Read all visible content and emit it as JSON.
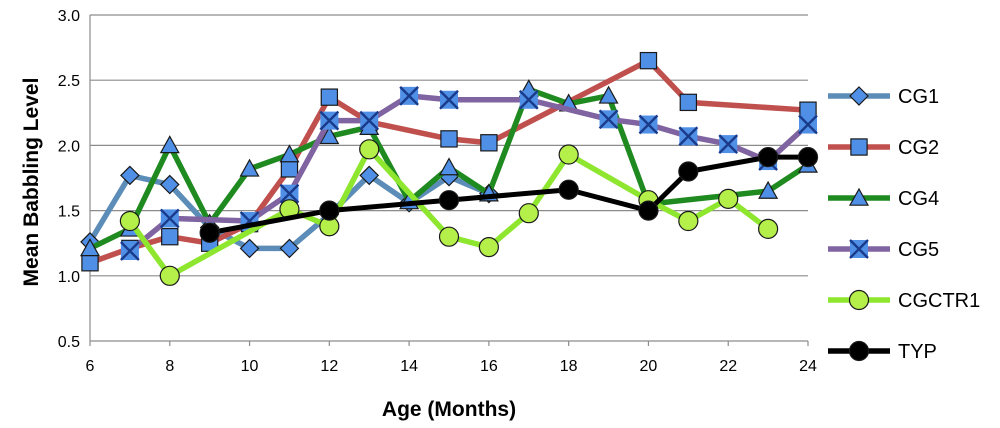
{
  "chart_data": {
    "type": "line",
    "xlabel": "Age (Months)",
    "ylabel": "Mean Babbling Level",
    "xlim": [
      6,
      24
    ],
    "ylim": [
      0.5,
      3.0
    ],
    "xticks": [
      6,
      8,
      10,
      12,
      14,
      16,
      18,
      20,
      22,
      24
    ],
    "xtick_labels": [
      "6",
      "8",
      "10",
      "12",
      "14",
      "16",
      "18",
      "20",
      "22",
      "24"
    ],
    "yticks": [
      0.5,
      1.0,
      1.5,
      2.0,
      2.5,
      3.0
    ],
    "ytick_labels": [
      "0.5",
      "1.0",
      "1.5",
      "2.0",
      "2.5",
      "3.0"
    ],
    "grid": "horizontal",
    "legend_position": "right",
    "series": [
      {
        "name": "CG1",
        "color": "#5b8db8",
        "marker": "diamond",
        "marker_fill": "#4f8fe6",
        "points": [
          [
            6,
            1.26
          ],
          [
            7,
            1.77
          ],
          [
            8,
            1.7
          ],
          [
            9,
            1.37
          ],
          [
            10,
            1.21
          ],
          [
            11,
            1.21
          ],
          [
            12,
            1.47
          ],
          [
            13,
            1.77
          ],
          [
            14,
            1.56
          ],
          [
            15,
            1.76
          ],
          [
            16,
            1.63
          ]
        ]
      },
      {
        "name": "CG2",
        "color": "#c0504d",
        "marker": "square",
        "marker_fill": "#4f8fe6",
        "points": [
          [
            6,
            1.1
          ],
          [
            7,
            1.21
          ],
          [
            8,
            1.3
          ],
          [
            9,
            1.25
          ],
          [
            10,
            1.4
          ],
          [
            11,
            1.82
          ],
          [
            12,
            2.37
          ],
          [
            13,
            2.18
          ],
          [
            15,
            2.05
          ],
          [
            16,
            2.02
          ],
          [
            20,
            2.65
          ],
          [
            21,
            2.33
          ],
          [
            24,
            2.27
          ]
        ]
      },
      {
        "name": "CG4",
        "color": "#1f8a1f",
        "marker": "triangle",
        "marker_fill": "#4f8fe6",
        "points": [
          [
            6,
            1.21
          ],
          [
            7,
            1.36
          ],
          [
            8,
            2.0
          ],
          [
            9,
            1.4
          ],
          [
            10,
            1.82
          ],
          [
            11,
            1.93
          ],
          [
            12,
            2.07
          ],
          [
            13,
            2.14
          ],
          [
            14,
            1.57
          ],
          [
            15,
            1.83
          ],
          [
            16,
            1.63
          ],
          [
            17,
            2.43
          ],
          [
            18,
            2.32
          ],
          [
            19,
            2.38
          ],
          [
            20,
            1.55
          ],
          [
            23,
            1.65
          ],
          [
            24,
            1.85
          ]
        ]
      },
      {
        "name": "CG5",
        "color": "#8064a2",
        "marker": "x",
        "marker_fill": "#4f8fe6",
        "points": [
          [
            7,
            1.19
          ],
          [
            8,
            1.44
          ],
          [
            10,
            1.42
          ],
          [
            11,
            1.63
          ],
          [
            12,
            2.19
          ],
          [
            13,
            2.19
          ],
          [
            14,
            2.38
          ],
          [
            15,
            2.35
          ],
          [
            17,
            2.35
          ],
          [
            19,
            2.2
          ],
          [
            20,
            2.16
          ],
          [
            21,
            2.07
          ],
          [
            22,
            2.01
          ],
          [
            23,
            1.88
          ],
          [
            24,
            2.16
          ]
        ]
      },
      {
        "name": "CGCTR1",
        "color": "#8ee62e",
        "marker": "circle",
        "marker_fill": "#b5f04a",
        "points": [
          [
            7,
            1.42
          ],
          [
            8,
            1.0
          ],
          [
            11,
            1.51
          ],
          [
            12,
            1.38
          ],
          [
            13,
            1.97
          ],
          [
            15,
            1.3
          ],
          [
            16,
            1.22
          ],
          [
            17,
            1.48
          ],
          [
            18,
            1.93
          ],
          [
            20,
            1.58
          ],
          [
            21,
            1.42
          ],
          [
            22,
            1.59
          ],
          [
            23,
            1.36
          ]
        ]
      },
      {
        "name": "TYP",
        "color": "#000000",
        "marker": "circle",
        "marker_fill": "#000000",
        "points": [
          [
            9,
            1.33
          ],
          [
            12,
            1.5
          ],
          [
            15,
            1.58
          ],
          [
            18,
            1.66
          ],
          [
            20,
            1.5
          ],
          [
            21,
            1.8
          ],
          [
            23,
            1.91
          ],
          [
            24,
            1.91
          ]
        ]
      }
    ]
  }
}
